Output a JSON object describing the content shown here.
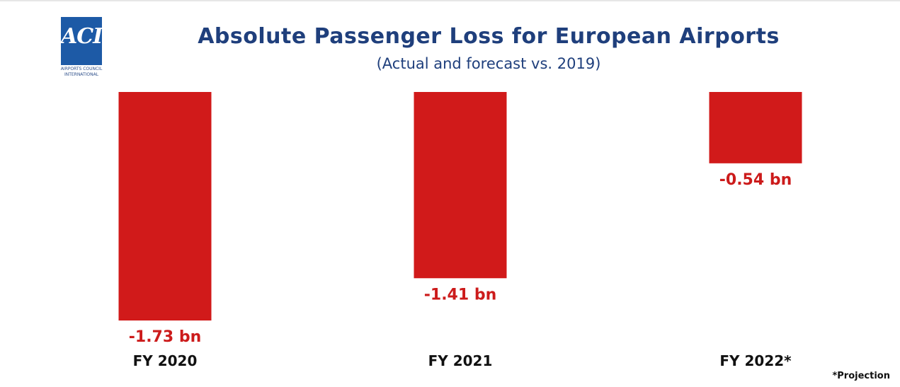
{
  "logo": {
    "mark": "ACI",
    "subtext_line1": "AIRPORTS COUNCIL",
    "subtext_line2": "INTERNATIONAL"
  },
  "footnote": "*Projection",
  "colors": {
    "bar": "#d11a1a",
    "value_label": "#cc1b1b",
    "title": "#1f3f7c",
    "category_label": "#111111"
  },
  "chart_data": {
    "type": "bar",
    "title": "Absolute Passenger Loss for European Airports",
    "subtitle": "(Actual and forecast vs. 2019)",
    "categories": [
      "FY 2020",
      "FY 2021",
      "FY 2022*"
    ],
    "values": [
      -1.73,
      -1.41,
      -0.54
    ],
    "value_labels": [
      "-1.73 bn",
      "-1.41 bn",
      "-0.54 bn"
    ],
    "unit": "bn",
    "ylim": [
      -1.73,
      0
    ],
    "grid": false,
    "legend": "none"
  }
}
